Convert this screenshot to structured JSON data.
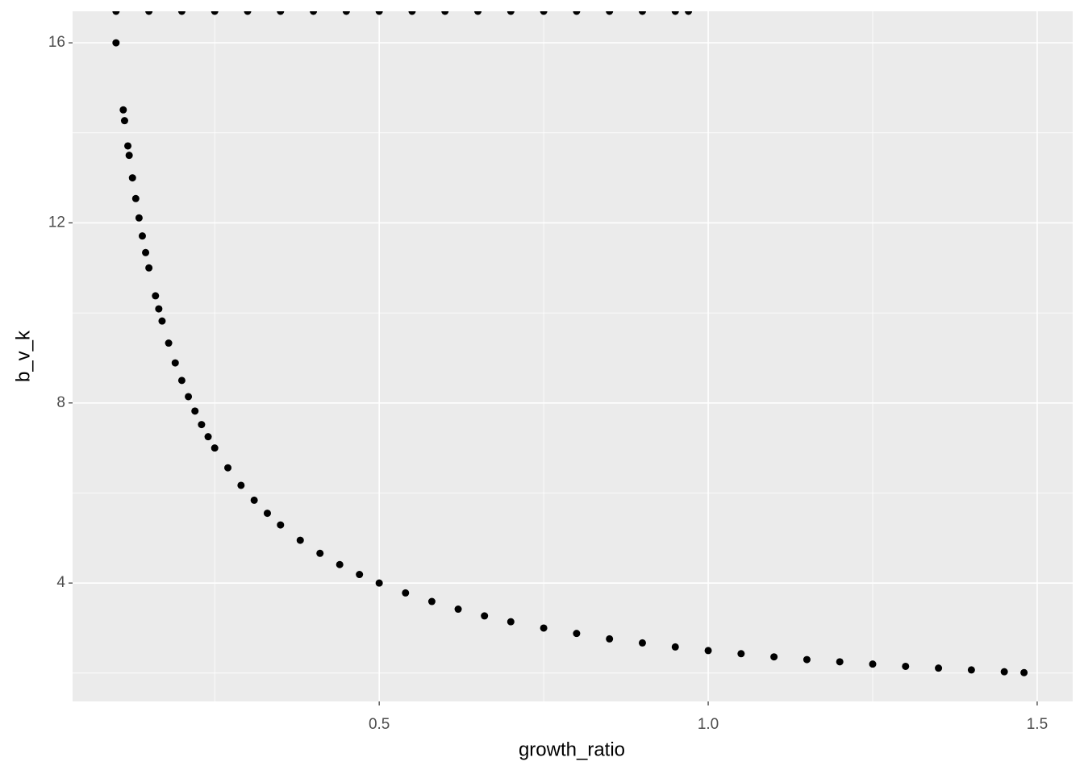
{
  "chart_data": {
    "type": "scatter",
    "xlabel": "growth_ratio",
    "ylabel": "b_v_k",
    "x": [
      0.1,
      0.111,
      0.113,
      0.118,
      0.12,
      0.125,
      0.13,
      0.135,
      0.14,
      0.145,
      0.15,
      0.16,
      0.165,
      0.17,
      0.18,
      0.19,
      0.2,
      0.21,
      0.22,
      0.23,
      0.24,
      0.25,
      0.27,
      0.29,
      0.31,
      0.33,
      0.35,
      0.38,
      0.41,
      0.44,
      0.47,
      0.5,
      0.54,
      0.58,
      0.62,
      0.66,
      0.7,
      0.75,
      0.8,
      0.85,
      0.9,
      0.95,
      1.0,
      1.05,
      1.1,
      1.15,
      1.2,
      1.25,
      1.3,
      1.35,
      1.4,
      1.45,
      1.48,
      0.1,
      0.15,
      0.2,
      0.25,
      0.3,
      0.35,
      0.4,
      0.45,
      0.5,
      0.55,
      0.6,
      0.65,
      0.7,
      0.75,
      0.8,
      0.85,
      0.9,
      0.95,
      0.97
    ],
    "y": [
      16.0,
      14.51,
      14.27,
      13.71,
      13.5,
      13.0,
      12.54,
      12.11,
      11.71,
      11.34,
      11.0,
      10.38,
      10.09,
      9.82,
      9.33,
      8.89,
      8.5,
      8.14,
      7.82,
      7.52,
      7.25,
      7.0,
      6.56,
      6.17,
      5.84,
      5.55,
      5.29,
      4.95,
      4.66,
      4.41,
      4.19,
      4.0,
      3.78,
      3.59,
      3.42,
      3.27,
      3.14,
      3.0,
      2.88,
      2.76,
      2.67,
      2.58,
      2.5,
      2.43,
      2.36,
      2.3,
      2.25,
      2.2,
      2.15,
      2.11,
      2.07,
      2.03,
      2.01,
      16.7,
      16.7,
      16.7,
      16.7,
      16.7,
      16.7,
      16.7,
      16.7,
      16.7,
      16.7,
      16.7,
      16.7,
      16.7,
      16.7,
      16.7,
      16.7,
      16.7,
      16.7,
      16.7
    ],
    "color": "#000000",
    "xlim": [
      0.034,
      1.554
    ],
    "ylim": [
      1.37,
      16.7
    ],
    "xticks": [
      0.5,
      {
        "value": 1.0,
        "label": "1.0"
      },
      1.5
    ],
    "yticks": [
      4,
      8,
      12,
      16
    ],
    "x_minor_grid": [
      0.25,
      0.75,
      1.25
    ],
    "y_minor_grid": [
      2,
      6,
      10,
      14
    ],
    "grid": true
  }
}
